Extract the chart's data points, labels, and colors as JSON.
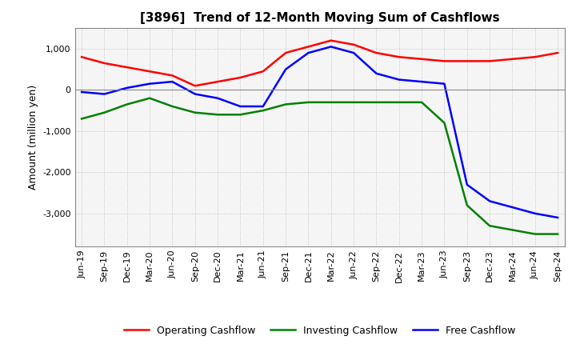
{
  "title": "[3896]  Trend of 12-Month Moving Sum of Cashflows",
  "ylabel": "Amount (million yen)",
  "title_fontsize": 11,
  "label_fontsize": 9,
  "tick_fontsize": 8,
  "xlabels": [
    "Jun-19",
    "Sep-19",
    "Dec-19",
    "Mar-20",
    "Jun-20",
    "Sep-20",
    "Dec-20",
    "Mar-21",
    "Jun-21",
    "Sep-21",
    "Dec-21",
    "Mar-22",
    "Jun-22",
    "Sep-22",
    "Dec-22",
    "Mar-23",
    "Jun-23",
    "Sep-23",
    "Dec-23",
    "Mar-24",
    "Jun-24",
    "Sep-24"
  ],
  "operating_cashflow": [
    800,
    650,
    550,
    450,
    350,
    100,
    200,
    300,
    450,
    900,
    1050,
    1200,
    1100,
    900,
    800,
    750,
    700,
    700,
    700,
    750,
    800,
    900
  ],
  "investing_cashflow": [
    -700,
    -550,
    -350,
    -200,
    -400,
    -550,
    -600,
    -600,
    -500,
    -350,
    -300,
    -300,
    -300,
    -300,
    -300,
    -300,
    -800,
    -2800,
    -3300,
    -3400,
    -3500,
    -3500
  ],
  "free_cashflow": [
    -50,
    -100,
    50,
    150,
    200,
    -100,
    -200,
    -400,
    -400,
    500,
    900,
    1050,
    900,
    400,
    250,
    200,
    150,
    -2300,
    -2700,
    -2850,
    -3000,
    -3100
  ],
  "ylim": [
    -3800,
    1500
  ],
  "yticks": [
    1000,
    0,
    -1000,
    -2000,
    -3000
  ],
  "colors": {
    "operating": "#ff0000",
    "investing": "#008000",
    "free": "#0000ff"
  },
  "grid_color": "#bbbbbb",
  "grid_style": "dotted",
  "background_color": "#ffffff",
  "plot_bg_color": "#f5f5f5"
}
